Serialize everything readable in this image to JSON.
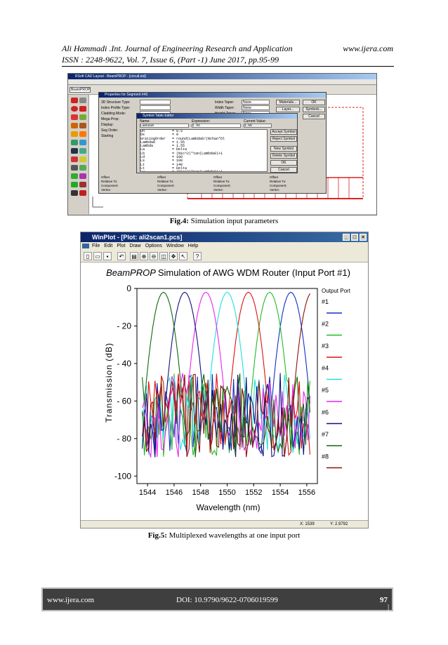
{
  "header": {
    "left_line1": "Ali Hammadi .Int. Journal of Engineering Research and Application",
    "right_line1": "www.ijera.com",
    "line2": "ISSN : 2248-9622, Vol. 7, Issue 6, (Part -1) June 2017, pp.95-99"
  },
  "fig4": {
    "window_title": "RSoft CAD Layout - BeamPROP - [circuit.ind]",
    "combo": "BeamPROP",
    "props_title": "Properties for Segment #43",
    "labels": [
      "3D Structure Type:",
      "Index Profile Type:",
      "Cladding Mode:",
      "Mega Prop:",
      "Display:",
      "Seg Order:",
      "Starting"
    ],
    "right_labels": [
      "Index Taper:",
      "Width Taper:",
      "Height Taper:"
    ],
    "taper_values": [
      "None",
      "None",
      "None"
    ],
    "buttons": [
      "Materials...",
      "Layer...",
      "Symbols...",
      "OK",
      "Cancel"
    ],
    "symtable_title": "Symbol Table Editor",
    "sym_headers": [
      "Name:",
      "Expression:",
      "Current Value:"
    ],
    "sym_name": "Lambda0",
    "sym_expr": "1.55",
    "sym_value": "1.55",
    "sym_rows": "Dn             = 0.5\nDx             = 0\nGratingOrder   = round(Lambda0/(Nchan*Dl\nLambda0        = 1.55\nLambda         = 1.55\nLa             = Delta\nLb             = (N1c^2)*tan(Lambda0)+1\nLd             = 100\nLs             = 100\nLt             = 140\nLt             = Delta\nLw             = (N1c^2)*tan(Lambda0)+1\nLwr            = 100\nLwd            = Lin\nLw5            = Width\nLwer           = (Nchan/1)*Opticalwith",
    "sym_buttons": [
      "Accept Symbol",
      "Reject Symbol",
      "New Symbol",
      "Delete Symbol",
      "OK",
      "Cancel"
    ],
    "bottom_fields": [
      "Offset",
      "Relative To:",
      "Component:",
      "Vertex:",
      "Start"
    ],
    "caption_label": "Fig.4:",
    "caption_text": "Simulation input parameters"
  },
  "fig5": {
    "window_title": "WinPlot - [Plot: ali2scan1.pcs]",
    "menu": [
      "File",
      "Edit",
      "Plot",
      "Draw",
      "Options",
      "Window",
      "Help"
    ],
    "status_x": "X: 1539",
    "status_y": "Y: 2.9792",
    "caption_label": "Fig.5:",
    "caption_text": "Multiplexed wavelengths at one input port"
  },
  "chart_data": {
    "type": "line",
    "title_italic": "BeamPROP",
    "title_rest": "Simulation of AWG WDM Router (Input Port #1)",
    "xlabel": "Wavelength (nm)",
    "ylabel": "Transmission (dB)",
    "xlim": [
      1543.2,
      1556.8
    ],
    "ylim": [
      -104,
      0
    ],
    "xticks": [
      "1544",
      "1546",
      "1548",
      "1550",
      "1552",
      "1554",
      "1556"
    ],
    "yticks": [
      "0",
      "- 20",
      "- 40",
      "- 60",
      "- 80",
      "-100"
    ],
    "legend_title": "Output Port",
    "legend_position": "right",
    "series": [
      {
        "name": "#1",
        "color": "#1030c0",
        "peak": 1554.8
      },
      {
        "name": "#2",
        "color": "#22bb22",
        "peak": 1553.2
      },
      {
        "name": "#3",
        "color": "#dd1111",
        "peak": 1551.6
      },
      {
        "name": "#4",
        "color": "#22e0e0",
        "peak": 1550.0
      },
      {
        "name": "#5",
        "color": "#ee22ee",
        "peak": 1548.4
      },
      {
        "name": "#6",
        "color": "#101080",
        "peak": 1546.8
      },
      {
        "name": "#7",
        "color": "#0b6b0b",
        "peak": 1545.2
      },
      {
        "name": "#8",
        "color": "#8a1010",
        "peak": 1556.4
      }
    ],
    "peak_value": -2,
    "floor_range": [
      -90,
      -45
    ]
  },
  "footer": {
    "left": "www.ijera.com",
    "doi": "DOI: 10.9790/9622-0706019599",
    "page_num": "97",
    "page_word": "| P a g e"
  }
}
